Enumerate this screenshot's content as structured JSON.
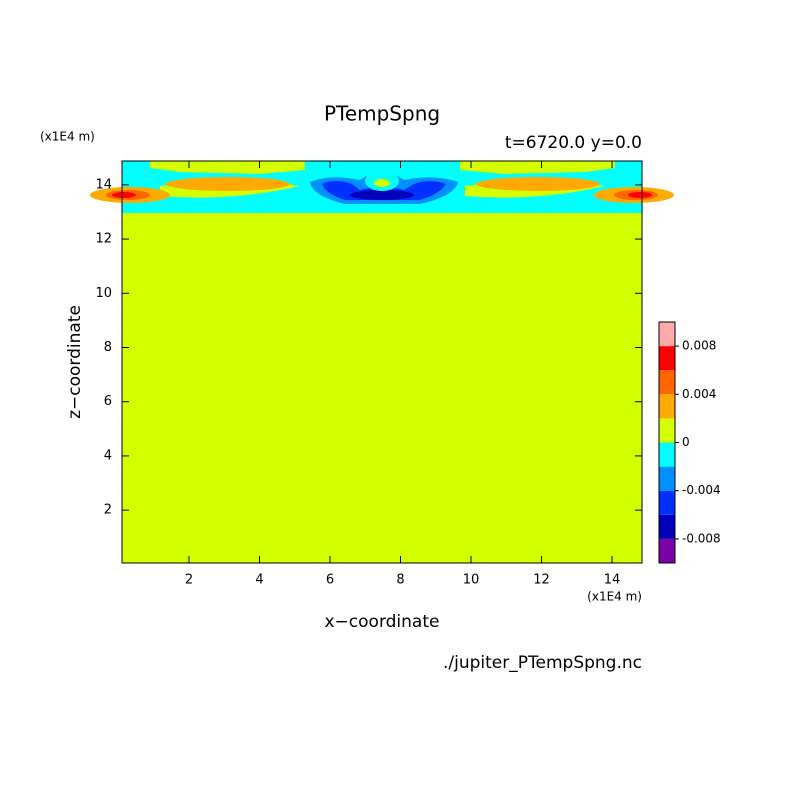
{
  "chart_data": {
    "type": "contour",
    "title": "PTempSpng",
    "subtitle": "t=6720.0 y=0.0",
    "x_label": "x−coordinate",
    "y_label": "z−coordinate",
    "x_unit": "(x1E4 m)",
    "y_unit": "(x1E4 m)",
    "footer": "./jupiter_PTempSpng.nc",
    "xlim": [
      0.1,
      14.85
    ],
    "ylim": [
      0.05,
      14.88
    ],
    "xticks": [
      2,
      4,
      6,
      8,
      10,
      12,
      14
    ],
    "yticks": [
      2,
      4,
      6,
      8,
      10,
      12,
      14
    ],
    "levels": [
      -0.01,
      -0.008,
      -0.006,
      -0.004,
      -0.002,
      0,
      0.002,
      0.004,
      0.006,
      0.008,
      0.01
    ],
    "colors": [
      "#7d00a8",
      "#0000b8",
      "#0030ff",
      "#0090ff",
      "#00ffff",
      "#d4ff00",
      "#ffaa00",
      "#ff6600",
      "#ff0000",
      "#ffaaaa"
    ],
    "colorbar_ticks": [
      -0.008,
      -0.004,
      0,
      0.004,
      0.008
    ]
  }
}
